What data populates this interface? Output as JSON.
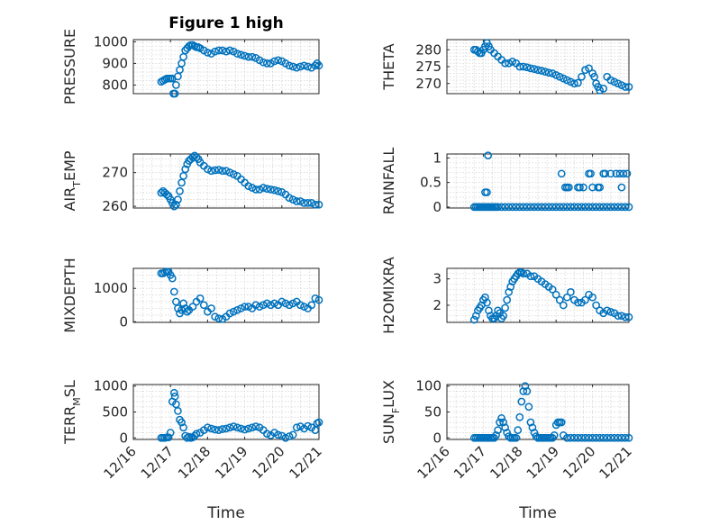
{
  "figure": {
    "title": "Figure 1 high",
    "marker_color": "#0072BD"
  },
  "chart_data": [
    {
      "id": "pressure",
      "type": "scatter",
      "title": "Figure 1 high",
      "ylabel": {
        "base": "PRESSURE"
      },
      "xlim": [
        0,
        5
      ],
      "ylim": [
        760,
        1010
      ],
      "yticks": [
        800,
        900,
        1000
      ],
      "xticks": [
        0,
        1,
        2,
        3,
        4,
        5
      ],
      "xticklabels": [],
      "xlabel": "",
      "x": [
        0.75,
        0.8,
        0.85,
        0.9,
        0.95,
        1.0,
        1.05,
        1.08,
        1.12,
        1.15,
        1.2,
        1.25,
        1.3,
        1.35,
        1.4,
        1.45,
        1.5,
        1.55,
        1.6,
        1.65,
        1.7,
        1.75,
        1.8,
        1.9,
        2.0,
        2.1,
        2.2,
        2.3,
        2.4,
        2.5,
        2.6,
        2.7,
        2.8,
        2.9,
        3.0,
        3.1,
        3.2,
        3.3,
        3.4,
        3.5,
        3.6,
        3.7,
        3.8,
        3.9,
        4.0,
        4.1,
        4.2,
        4.3,
        4.4,
        4.5,
        4.6,
        4.7,
        4.8,
        4.9,
        4.95,
        5.0
      ],
      "y": [
        815,
        820,
        825,
        830,
        830,
        830,
        830,
        760,
        760,
        800,
        840,
        870,
        900,
        930,
        960,
        970,
        980,
        985,
        985,
        980,
        975,
        975,
        970,
        960,
        950,
        945,
        955,
        960,
        960,
        955,
        960,
        955,
        945,
        940,
        935,
        930,
        930,
        925,
        915,
        905,
        900,
        900,
        910,
        915,
        910,
        900,
        890,
        885,
        880,
        885,
        890,
        885,
        880,
        890,
        900,
        890
      ]
    },
    {
      "id": "theta",
      "type": "scatter",
      "ylabel": {
        "base": "THETA"
      },
      "xlim": [
        0,
        5
      ],
      "ylim": [
        267,
        283
      ],
      "yticks": [
        270,
        275,
        280
      ],
      "xticks": [
        0,
        1,
        2,
        3,
        4,
        5
      ],
      "xticklabels": [],
      "xlabel": "",
      "x": [
        0.75,
        0.8,
        0.85,
        0.9,
        0.95,
        1.0,
        1.05,
        1.1,
        1.15,
        1.2,
        1.3,
        1.4,
        1.5,
        1.6,
        1.7,
        1.8,
        1.9,
        2.0,
        2.1,
        2.2,
        2.3,
        2.4,
        2.5,
        2.6,
        2.7,
        2.8,
        2.9,
        3.0,
        3.1,
        3.2,
        3.3,
        3.4,
        3.5,
        3.6,
        3.7,
        3.8,
        3.9,
        4.0,
        4.05,
        4.1,
        4.15,
        4.2,
        4.3,
        4.4,
        4.5,
        4.6,
        4.7,
        4.8,
        4.9,
        5.0
      ],
      "y": [
        280,
        280,
        279.5,
        279,
        279,
        280,
        281,
        282,
        281,
        280,
        279,
        278,
        277,
        276,
        276,
        276.5,
        276,
        275,
        275,
        274.8,
        274.5,
        274.3,
        274,
        273.8,
        273.5,
        273.2,
        273,
        272.5,
        272,
        271.5,
        271,
        270.5,
        270,
        270.2,
        272,
        274,
        274.5,
        273,
        272,
        270,
        269,
        268,
        268.5,
        272,
        271,
        270.5,
        270,
        269.5,
        269,
        269
      ]
    },
    {
      "id": "air_temp",
      "type": "scatter",
      "ylabel": {
        "base": "AIR",
        "sub": "T",
        "rest": "EMP"
      },
      "xlim": [
        0,
        5
      ],
      "ylim": [
        259.5,
        275.5
      ],
      "yticks": [
        260,
        270
      ],
      "xticks": [
        0,
        1,
        2,
        3,
        4,
        5
      ],
      "xticklabels": [],
      "xlabel": "",
      "x": [
        0.75,
        0.8,
        0.85,
        0.9,
        0.95,
        1.0,
        1.05,
        1.1,
        1.15,
        1.2,
        1.25,
        1.3,
        1.35,
        1.4,
        1.45,
        1.5,
        1.55,
        1.6,
        1.65,
        1.7,
        1.75,
        1.8,
        1.9,
        2.0,
        2.1,
        2.2,
        2.3,
        2.4,
        2.5,
        2.6,
        2.7,
        2.8,
        2.9,
        3.0,
        3.1,
        3.2,
        3.3,
        3.4,
        3.5,
        3.6,
        3.7,
        3.8,
        3.9,
        4.0,
        4.1,
        4.2,
        4.3,
        4.4,
        4.5,
        4.6,
        4.7,
        4.8,
        4.9,
        5.0
      ],
      "y": [
        264,
        264.5,
        264,
        263.5,
        263,
        262,
        261,
        260,
        260.5,
        262,
        264.5,
        267,
        269,
        271,
        272.5,
        273.5,
        274,
        274.5,
        275,
        274.5,
        274,
        273,
        272,
        271,
        270.5,
        270.7,
        270.8,
        270.5,
        270.5,
        270,
        269.5,
        269,
        268,
        267,
        266,
        265.5,
        265,
        265,
        265.5,
        265.2,
        265,
        264.8,
        264.5,
        264.2,
        263.5,
        262.5,
        262,
        261.5,
        261.5,
        261,
        261,
        261,
        260.5,
        260.5
      ]
    },
    {
      "id": "rainfall",
      "type": "scatter",
      "ylabel": {
        "base": "RAINFALL"
      },
      "xlim": [
        0,
        5
      ],
      "ylim": [
        -0.02,
        1.08
      ],
      "yticks": [
        0,
        0.5,
        1
      ],
      "xticks": [
        0,
        1,
        2,
        3,
        4,
        5
      ],
      "xticklabels": [],
      "xlabel": "",
      "x": [
        0.75,
        0.8,
        0.85,
        0.9,
        0.95,
        1.0,
        1.05,
        1.1,
        1.15,
        1.2,
        1.25,
        1.3,
        1.35,
        1.4,
        1.5,
        1.6,
        1.7,
        1.8,
        1.9,
        2.0,
        2.1,
        2.2,
        2.3,
        2.4,
        2.5,
        2.6,
        2.7,
        2.8,
        2.9,
        3.0,
        3.1,
        3.2,
        3.3,
        3.4,
        3.5,
        3.6,
        3.7,
        3.8,
        3.9,
        4.0,
        4.1,
        4.2,
        4.3,
        4.4,
        4.5,
        4.6,
        4.7,
        4.8,
        4.9,
        5.0,
        1.05,
        1.1,
        1.13,
        3.15,
        3.25,
        3.3,
        3.35,
        3.6,
        3.65,
        3.9,
        3.95,
        4.0,
        4.15,
        4.3,
        4.35,
        4.5,
        4.65,
        4.75,
        4.85,
        4.95,
        3.75,
        4.2,
        4.8
      ],
      "y": [
        0,
        0,
        0,
        0,
        0,
        0,
        0,
        0,
        0,
        0,
        0,
        0,
        0,
        0,
        0,
        0,
        0,
        0,
        0,
        0,
        0,
        0,
        0,
        0,
        0,
        0,
        0,
        0,
        0,
        0,
        0,
        0,
        0,
        0,
        0,
        0,
        0,
        0,
        0,
        0,
        0,
        0,
        0,
        0,
        0,
        0,
        0,
        0,
        0,
        0,
        0.3,
        0.3,
        1.05,
        0.68,
        0.4,
        0.4,
        0.4,
        0.4,
        0.4,
        0.68,
        0.68,
        0.4,
        0.4,
        0.68,
        0.68,
        0.68,
        0.68,
        0.68,
        0.68,
        0.68,
        0.4,
        0.4,
        0.4
      ]
    },
    {
      "id": "mixdepth",
      "type": "scatter",
      "ylabel": {
        "base": "MIXDEPTH"
      },
      "xlim": [
        0,
        5
      ],
      "ylim": [
        -20,
        1600
      ],
      "yticks": [
        0,
        1000
      ],
      "xticks": [
        0,
        1,
        2,
        3,
        4,
        5
      ],
      "xticklabels": [],
      "xlabel": "",
      "x": [
        0.75,
        0.8,
        0.85,
        0.9,
        0.95,
        1.0,
        1.05,
        1.1,
        1.15,
        1.2,
        1.25,
        1.3,
        1.35,
        1.4,
        1.45,
        1.5,
        1.6,
        1.7,
        1.8,
        1.9,
        2.0,
        2.1,
        2.2,
        2.3,
        2.4,
        2.5,
        2.6,
        2.7,
        2.8,
        2.9,
        3.0,
        3.1,
        3.2,
        3.3,
        3.4,
        3.5,
        3.6,
        3.7,
        3.8,
        3.9,
        4.0,
        4.1,
        4.2,
        4.3,
        4.4,
        4.5,
        4.6,
        4.7,
        4.8,
        4.9,
        5.0
      ],
      "y": [
        1450,
        1450,
        1480,
        1500,
        1500,
        1400,
        1300,
        900,
        600,
        400,
        250,
        350,
        550,
        400,
        300,
        350,
        450,
        600,
        700,
        500,
        300,
        400,
        150,
        100,
        80,
        150,
        250,
        300,
        350,
        400,
        450,
        450,
        400,
        500,
        450,
        500,
        550,
        500,
        550,
        500,
        600,
        550,
        500,
        550,
        600,
        500,
        450,
        400,
        500,
        700,
        650
      ]
    },
    {
      "id": "h2omixra",
      "type": "scatter",
      "ylabel": {
        "base": "H2OMIXRA"
      },
      "xlim": [
        0,
        5
      ],
      "ylim": [
        1.35,
        3.4
      ],
      "yticks": [
        2,
        3
      ],
      "xticks": [
        0,
        1,
        2,
        3,
        4,
        5
      ],
      "xticklabels": [],
      "xlabel": "",
      "x": [
        0.75,
        0.8,
        0.85,
        0.9,
        0.95,
        1.0,
        1.05,
        1.1,
        1.15,
        1.2,
        1.25,
        1.3,
        1.35,
        1.4,
        1.45,
        1.5,
        1.55,
        1.6,
        1.65,
        1.7,
        1.75,
        1.8,
        1.85,
        1.9,
        1.95,
        2.0,
        2.05,
        2.1,
        2.2,
        2.3,
        2.4,
        2.5,
        2.6,
        2.7,
        2.8,
        2.9,
        3.0,
        3.1,
        3.2,
        3.3,
        3.4,
        3.5,
        3.6,
        3.7,
        3.8,
        3.9,
        4.0,
        4.1,
        4.2,
        4.3,
        4.4,
        4.5,
        4.6,
        4.7,
        4.8,
        4.9,
        5.0
      ],
      "y": [
        1.45,
        1.6,
        1.8,
        1.9,
        2.0,
        2.2,
        2.3,
        2.1,
        1.8,
        1.6,
        1.5,
        1.5,
        1.6,
        1.8,
        1.7,
        1.5,
        1.6,
        1.9,
        2.2,
        2.5,
        2.7,
        2.9,
        3.0,
        3.1,
        3.2,
        3.25,
        3.25,
        3.2,
        3.2,
        3.1,
        3.1,
        3.0,
        2.9,
        2.8,
        2.7,
        2.6,
        2.4,
        2.2,
        2.0,
        2.3,
        2.5,
        2.2,
        2.1,
        2.1,
        2.2,
        2.4,
        2.3,
        2.0,
        1.8,
        1.7,
        1.8,
        1.75,
        1.7,
        1.6,
        1.6,
        1.55,
        1.55
      ]
    },
    {
      "id": "terr_msl",
      "type": "scatter",
      "ylabel": {
        "base": "TERR",
        "sub": "M",
        "rest": "SL"
      },
      "xlim": [
        0,
        5
      ],
      "ylim": [
        -30,
        1030
      ],
      "yticks": [
        0,
        500,
        1000
      ],
      "xticks": [
        0,
        1,
        2,
        3,
        4,
        5
      ],
      "xticklabels": [
        "12/16",
        "12/17",
        "12/18",
        "12/19",
        "12/20",
        "12/21"
      ],
      "xlabel": "Time",
      "x": [
        0.75,
        0.8,
        0.85,
        0.9,
        0.95,
        1.0,
        1.05,
        1.1,
        1.12,
        1.15,
        1.2,
        1.25,
        1.3,
        1.35,
        1.4,
        1.45,
        1.5,
        1.55,
        1.6,
        1.65,
        1.7,
        1.8,
        1.9,
        2.0,
        2.1,
        2.2,
        2.3,
        2.4,
        2.5,
        2.6,
        2.7,
        2.8,
        2.9,
        3.0,
        3.1,
        3.2,
        3.3,
        3.4,
        3.5,
        3.6,
        3.7,
        3.8,
        3.9,
        4.0,
        4.1,
        4.2,
        4.3,
        4.4,
        4.5,
        4.6,
        4.7,
        4.8,
        4.9,
        4.95,
        5.0
      ],
      "y": [
        0,
        0,
        0,
        10,
        10,
        100,
        700,
        870,
        800,
        650,
        520,
        350,
        300,
        200,
        40,
        0,
        20,
        0,
        10,
        40,
        80,
        100,
        150,
        200,
        180,
        160,
        150,
        170,
        180,
        200,
        220,
        200,
        180,
        160,
        180,
        200,
        220,
        200,
        150,
        80,
        50,
        100,
        60,
        40,
        0,
        30,
        60,
        200,
        220,
        180,
        230,
        200,
        150,
        280,
        300
      ]
    },
    {
      "id": "sun_flux",
      "type": "scatter",
      "ylabel": {
        "base": "SUN",
        "sub": "F",
        "rest": "LUX"
      },
      "xlim": [
        0,
        5
      ],
      "ylim": [
        -3,
        103
      ],
      "yticks": [
        0,
        50,
        100
      ],
      "xticks": [
        0,
        1,
        2,
        3,
        4,
        5
      ],
      "xticklabels": [
        "12/16",
        "12/17",
        "12/18",
        "12/19",
        "12/20",
        "12/21"
      ],
      "xlabel": "Time",
      "x": [
        0.75,
        0.8,
        0.85,
        0.9,
        0.95,
        1.0,
        1.05,
        1.1,
        1.15,
        1.2,
        1.25,
        1.3,
        1.35,
        1.4,
        1.45,
        1.5,
        1.55,
        1.6,
        1.65,
        1.7,
        1.75,
        1.8,
        1.85,
        1.9,
        1.95,
        2.0,
        2.05,
        2.1,
        2.15,
        2.2,
        2.25,
        2.3,
        2.35,
        2.4,
        2.45,
        2.5,
        2.55,
        2.6,
        2.65,
        2.7,
        2.75,
        2.8,
        2.85,
        2.9,
        2.95,
        3.0,
        3.05,
        3.1,
        3.15,
        3.2,
        3.3,
        3.4,
        3.5,
        3.6,
        3.7,
        3.8,
        3.9,
        4.0,
        4.1,
        4.2,
        4.3,
        4.4,
        4.5,
        4.6,
        4.7,
        4.8,
        4.9,
        5.0
      ],
      "y": [
        0,
        0,
        0,
        0,
        0,
        0,
        0,
        0,
        0,
        0,
        0,
        0,
        5,
        15,
        30,
        38,
        30,
        20,
        10,
        3,
        0,
        0,
        0,
        0,
        15,
        40,
        70,
        90,
        100,
        90,
        60,
        30,
        20,
        10,
        3,
        0,
        0,
        0,
        0,
        0,
        0,
        0,
        0,
        0,
        5,
        25,
        30,
        30,
        30,
        5,
        0,
        0,
        0,
        0,
        0,
        0,
        0,
        0,
        0,
        0,
        0,
        0,
        0,
        0,
        0,
        0,
        0,
        0
      ]
    }
  ]
}
